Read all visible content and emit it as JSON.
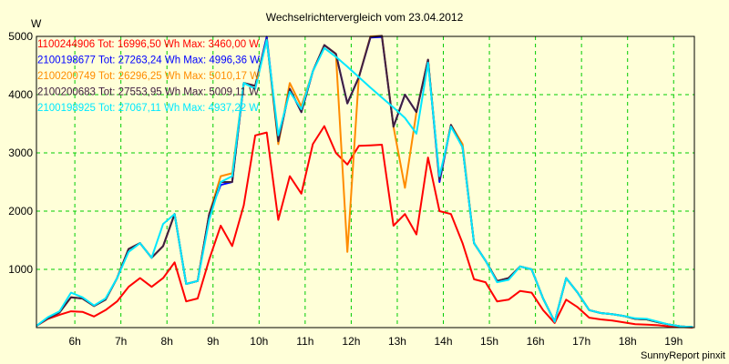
{
  "chart_data": {
    "type": "line",
    "title": "Wechselrichtervergleich vom 23.04.2012",
    "ylabel": "W",
    "xlabel": "",
    "footer": "SunnyReport pinxit",
    "ylim": [
      0,
      5000
    ],
    "xlim": [
      5.1667,
      19.45
    ],
    "x_start_hour": 5.1667,
    "x_interval_hours": 0.25,
    "y_ticks": [
      "1000",
      "2000",
      "3000",
      "4000",
      "5000"
    ],
    "x_ticks": [
      "6h",
      "7h",
      "8h",
      "9h",
      "10h",
      "11h",
      "12h",
      "13h",
      "14h",
      "15h",
      "16h",
      "17h",
      "18h",
      "19h"
    ],
    "grid": true,
    "legend_position": "top-left",
    "series": [
      {
        "name": "1100244906",
        "legend": "1100244906 Tot: 16996,50 Wh Max: 3460,00 W",
        "color": "#ff0000",
        "values": [
          30,
          150,
          220,
          280,
          270,
          190,
          300,
          450,
          700,
          850,
          700,
          850,
          1120,
          450,
          500,
          1170,
          1750,
          1400,
          2100,
          3300,
          3350,
          1850,
          2600,
          2300,
          3150,
          3460,
          3000,
          2800,
          3120,
          3130,
          3140,
          1750,
          1950,
          1600,
          2920,
          2000,
          1950,
          1450,
          830,
          780,
          450,
          480,
          630,
          600,
          300,
          80,
          480,
          350,
          170,
          140,
          120,
          90,
          60,
          50,
          40,
          20,
          10,
          0
        ]
      },
      {
        "name": "2100198677",
        "legend": "2100198677 Tot: 27263,24 Wh Max: 4996,36 W",
        "color": "#0000ff",
        "values": [
          30,
          160,
          260,
          520,
          500,
          370,
          480,
          850,
          1350,
          1450,
          1200,
          1400,
          1950,
          750,
          800,
          1950,
          2450,
          2500,
          4200,
          4150,
          4996,
          3200,
          4100,
          3700,
          4400,
          4850,
          4700,
          3850,
          4300,
          4980,
          4990,
          3450,
          4000,
          3700,
          4600,
          2500,
          3480,
          3100,
          1450,
          1150,
          800,
          850,
          1050,
          1000,
          500,
          100,
          850,
          600,
          300,
          250,
          230,
          200,
          150,
          140,
          90,
          50,
          20,
          10
        ]
      },
      {
        "name": "2100200749",
        "legend": "2100200749 Tot: 26296,25 Wh Max: 5010,17 W",
        "color": "#ff8c00",
        "values": [
          30,
          160,
          260,
          520,
          500,
          370,
          480,
          850,
          1350,
          1450,
          1200,
          1400,
          1950,
          750,
          800,
          1950,
          2600,
          2650,
          4200,
          4150,
          4950,
          3150,
          4200,
          3800,
          4400,
          4850,
          4700,
          1300,
          4300,
          5000,
          5010,
          3450,
          2400,
          3700,
          4600,
          2550,
          3480,
          3150,
          1450,
          1150,
          800,
          850,
          1050,
          1000,
          500,
          100,
          850,
          600,
          300,
          250,
          230,
          200,
          150,
          140,
          90,
          50,
          20,
          10
        ]
      },
      {
        "name": "2100200683",
        "legend": "2100200683 Tot: 27553,95 Wh Max: 5009,11 W",
        "color": "#402040",
        "values": [
          30,
          160,
          260,
          520,
          500,
          370,
          480,
          850,
          1350,
          1450,
          1200,
          1400,
          1950,
          750,
          800,
          1950,
          2500,
          2500,
          4200,
          4150,
          4950,
          3200,
          4100,
          3700,
          4400,
          4850,
          4700,
          3850,
          4300,
          4990,
          5009,
          3450,
          4000,
          3700,
          4600,
          2550,
          3480,
          3100,
          1450,
          1150,
          800,
          850,
          1050,
          1000,
          500,
          100,
          850,
          600,
          300,
          250,
          230,
          200,
          150,
          140,
          90,
          50,
          20,
          10
        ]
      },
      {
        "name": "2100198925",
        "legend": "2100198925 Tot: 27067,11 Wh Max: 4937,22 W",
        "color": "#00e8ff",
        "values": [
          30,
          180,
          280,
          600,
          520,
          380,
          500,
          850,
          1300,
          1450,
          1200,
          1780,
          1950,
          750,
          800,
          1850,
          2500,
          2600,
          4200,
          4100,
          4937,
          3300,
          4050,
          3750,
          4400,
          4800,
          4650,
          4480,
          4300,
          4120,
          3950,
          3780,
          3600,
          3330,
          4550,
          2600,
          3450,
          3100,
          1450,
          1150,
          780,
          820,
          1050,
          1000,
          500,
          100,
          850,
          600,
          300,
          250,
          230,
          200,
          160,
          150,
          100,
          50,
          20,
          10
        ]
      }
    ]
  }
}
